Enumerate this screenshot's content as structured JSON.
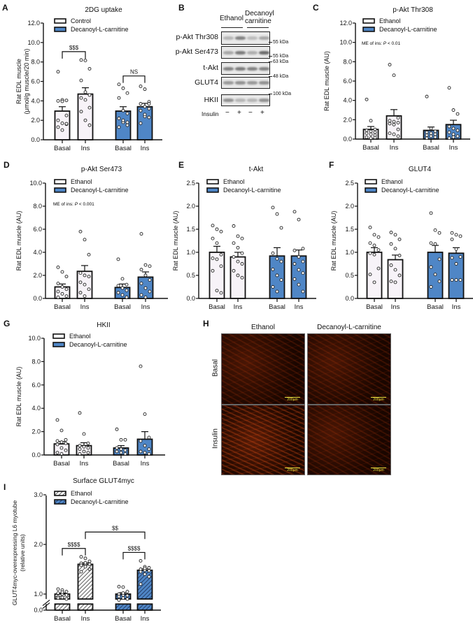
{
  "panel_letters": [
    "A",
    "B",
    "C",
    "D",
    "E",
    "F",
    "G",
    "H",
    "I"
  ],
  "colors": {
    "control": "#ffffff",
    "treatment": "#4f86c6",
    "ethanol_bar": "#f7f3f8",
    "axis": "#111111"
  },
  "blot": {
    "groups": [
      "Ethanol",
      "Decanoyl carnitine"
    ],
    "rows": [
      {
        "label": "p-Akt Thr308",
        "kda": "55 kDa"
      },
      {
        "label": "p-Akt Ser473",
        "kda": "55 kDa"
      },
      {
        "label": "t-Akt",
        "kda": "63 kDa"
      },
      {
        "label": "GLUT4",
        "kda": "48 kDa"
      },
      {
        "label": "HKII",
        "kda": "100 kDa"
      }
    ],
    "insulin_label": "Insulin",
    "insulin_states": [
      "−",
      "+",
      "−",
      "+"
    ]
  },
  "micrographs": {
    "columns": [
      "Ethanol",
      "Decanoyl-L-carnitine"
    ],
    "rows": [
      "Basal",
      "Insulin"
    ],
    "scale_bar": "200μm"
  },
  "chart_data": [
    {
      "id": "A",
      "type": "bar",
      "title": "2DG uptake",
      "ylabel": [
        "Rat EDL muscle",
        "(μmol/g muscle/20 min)"
      ],
      "legend": [
        "Control",
        "Decanoyl-L-carnitine"
      ],
      "ylim": [
        0,
        12
      ],
      "yticks": [
        "0.0",
        "2.0",
        "4.0",
        "6.0",
        "8.0",
        "10.0",
        "12.0"
      ],
      "categories": [
        "Basal",
        "Ins",
        "Basal",
        "Ins"
      ],
      "bars": [
        {
          "group": "Control",
          "mean": 2.95,
          "sem": 0.45,
          "points": [
            7.0,
            4.1,
            4.05,
            4.0,
            3.95,
            2.5,
            2.0,
            1.7,
            1.6,
            1.3,
            1.0,
            1.65
          ]
        },
        {
          "group": "Control",
          "mean": 4.7,
          "sem": 0.65,
          "points": [
            8.2,
            8.15,
            7.3,
            6.1,
            4.9,
            4.6,
            4.3,
            4.1,
            3.3,
            2.9,
            2.0,
            1.5
          ]
        },
        {
          "group": "Decanoyl-L-carnitine",
          "mean": 2.95,
          "sem": 0.45,
          "points": [
            5.7,
            5.3,
            4.8,
            4.3,
            3.0,
            2.7,
            2.2,
            1.8,
            1.5,
            1.3,
            2.0,
            1.8
          ]
        },
        {
          "group": "Decanoyl-L-carnitine",
          "mean": 3.4,
          "sem": 0.35,
          "points": [
            5.5,
            5.2,
            3.9,
            3.7,
            3.4,
            3.2,
            3.0,
            2.4,
            2.3,
            1.7,
            2.6,
            3.7
          ]
        }
      ],
      "significance": [
        {
          "from": 0,
          "to": 1,
          "label": "$$$"
        },
        {
          "from": 2,
          "to": 3,
          "label": "NS"
        }
      ]
    },
    {
      "id": "C",
      "type": "bar",
      "title": "p-Akt Thr308",
      "ylabel": [
        "Rat EDL muscle (AU)"
      ],
      "legend": [
        "Ethanol",
        "Decanoyl-L-carnitine"
      ],
      "ylim": [
        0,
        12
      ],
      "yticks": [
        "0.0",
        "2.0",
        "4.0",
        "6.0",
        "8.0",
        "10.0",
        "12.0"
      ],
      "annotation": {
        "prefix": "ME of ins: ",
        "italic": "P",
        "suffix": " < 0.01"
      },
      "categories": [
        "Basal",
        "Ins",
        "Basal",
        "Ins"
      ],
      "bars": [
        {
          "group": "Ethanol",
          "mean": 1.0,
          "sem": 0.3,
          "points": [
            4.1,
            1.9,
            1.0,
            0.9,
            0.8,
            0.7,
            0.6,
            0.5,
            0.4,
            0.2,
            0.1,
            0.15
          ]
        },
        {
          "group": "Ethanol",
          "mean": 2.4,
          "sem": 0.65,
          "points": [
            7.7,
            6.6,
            2.2,
            1.9,
            1.8,
            1.7,
            1.6,
            1.5,
            1.0,
            0.6,
            0.5,
            0.3
          ]
        },
        {
          "group": "Decanoyl-L-carnitine",
          "mean": 0.9,
          "sem": 0.35,
          "points": [
            4.4,
            1.1,
            0.8,
            0.7,
            0.6,
            0.5,
            0.4,
            0.3,
            0.2,
            0.1
          ]
        },
        {
          "group": "Decanoyl-L-carnitine",
          "mean": 1.5,
          "sem": 0.45,
          "points": [
            5.3,
            3.0,
            2.6,
            1.3,
            1.1,
            0.9,
            0.7,
            0.5,
            0.3,
            0.1,
            0.2
          ]
        }
      ]
    },
    {
      "id": "D",
      "type": "bar",
      "title": "p-Akt Ser473",
      "ylabel": [
        "Rat EDL muscle (AU)"
      ],
      "legend": [
        "Ethanol",
        "Decanoyl-L-carnitine"
      ],
      "ylim": [
        0,
        10
      ],
      "yticks": [
        "0.0",
        "2.0",
        "4.0",
        "6.0",
        "8.0",
        "10.0"
      ],
      "annotation": {
        "prefix": "ME of ins: ",
        "italic": "P",
        "suffix": " < 0.001"
      },
      "categories": [
        "Basal",
        "Ins",
        "Basal",
        "Ins"
      ],
      "bars": [
        {
          "group": "Ethanol",
          "mean": 1.0,
          "sem": 0.25,
          "points": [
            2.7,
            2.3,
            1.9,
            1.3,
            1.0,
            0.8,
            0.6,
            0.4,
            0.2,
            0.1
          ]
        },
        {
          "group": "Ethanol",
          "mean": 2.35,
          "sem": 0.5,
          "points": [
            5.8,
            5.1,
            3.8,
            2.2,
            2.0,
            1.9,
            1.4,
            1.2,
            0.8,
            0.5,
            0.2
          ]
        },
        {
          "group": "Decanoyl-L-carnitine",
          "mean": 0.95,
          "sem": 0.3,
          "points": [
            3.4,
            1.7,
            1.2,
            1.1,
            0.9,
            0.7,
            0.5,
            0.3,
            0.1
          ]
        },
        {
          "group": "Decanoyl-L-carnitine",
          "mean": 1.85,
          "sem": 0.45,
          "points": [
            5.6,
            2.9,
            2.8,
            2.5,
            2.0,
            1.6,
            1.3,
            0.9,
            0.6,
            0.3,
            0.1
          ]
        }
      ]
    },
    {
      "id": "E",
      "type": "bar",
      "title": "t-Akt",
      "ylabel": [
        "Rat EDL muscle (AU)"
      ],
      "legend": [
        "Ethanol",
        "Decanoyl-L-carnitine"
      ],
      "ylim": [
        0,
        2.5
      ],
      "yticks": [
        "0.0",
        "0.5",
        "1.0",
        "1.5",
        "2.0",
        "2.5"
      ],
      "categories": [
        "Basal",
        "Ins",
        "Basal",
        "Ins"
      ],
      "bars": [
        {
          "group": "Ethanol",
          "mean": 1.0,
          "sem": 0.13,
          "points": [
            1.58,
            1.5,
            1.45,
            1.3,
            1.2,
            0.95,
            0.87,
            0.85,
            0.7,
            0.6,
            0.17,
            0.12
          ]
        },
        {
          "group": "Ethanol",
          "mean": 0.9,
          "sem": 0.1,
          "points": [
            1.57,
            1.35,
            1.3,
            1.2,
            1.1,
            0.98,
            0.9,
            0.8,
            0.75,
            0.6,
            0.5,
            0.45
          ]
        },
        {
          "group": "Decanoyl-L-carnitine",
          "mean": 0.92,
          "sem": 0.18,
          "points": [
            1.97,
            1.83,
            1.53,
            0.98,
            0.86,
            0.8,
            0.63,
            0.5,
            0.4,
            0.25,
            0.15
          ]
        },
        {
          "group": "Decanoyl-L-carnitine",
          "mean": 0.92,
          "sem": 0.13,
          "points": [
            1.88,
            1.71,
            1.08,
            1.04,
            0.9,
            0.8,
            0.75,
            0.62,
            0.55,
            0.42,
            0.3,
            0.15
          ]
        }
      ]
    },
    {
      "id": "F",
      "type": "bar",
      "title": "GLUT4",
      "ylabel": [
        "Rat EDL muscle (AU)"
      ],
      "legend": [
        "Ethanol",
        "Decanoyl-L-carnitine"
      ],
      "ylim": [
        0,
        2.5
      ],
      "yticks": [
        "0.0",
        "0.5",
        "1.0",
        "1.5",
        "2.0",
        "2.5"
      ],
      "categories": [
        "Basal",
        "Ins",
        "Basal",
        "Ins"
      ],
      "bars": [
        {
          "group": "Ethanol",
          "mean": 1.0,
          "sem": 0.1,
          "points": [
            1.54,
            1.38,
            1.33,
            1.2,
            1.15,
            1.05,
            0.98,
            0.95,
            0.65,
            0.52,
            0.35
          ]
        },
        {
          "group": "Ethanol",
          "mean": 0.84,
          "sem": 0.1,
          "points": [
            1.43,
            1.38,
            1.28,
            1.18,
            1.08,
            0.93,
            0.72,
            0.62,
            0.5,
            0.37,
            0.35
          ]
        },
        {
          "group": "Decanoyl-L-carnitine",
          "mean": 1.0,
          "sem": 0.15,
          "points": [
            1.85,
            1.48,
            1.42,
            1.2,
            1.18,
            0.85,
            0.68,
            0.52,
            0.37,
            0.25
          ]
        },
        {
          "group": "Decanoyl-L-carnitine",
          "mean": 0.98,
          "sem": 0.12,
          "points": [
            1.42,
            1.38,
            1.35,
            1.28,
            1.07,
            0.9,
            0.88,
            0.75,
            0.4,
            0.4,
            0.4
          ]
        }
      ]
    },
    {
      "id": "G",
      "type": "bar",
      "title": "HKII",
      "ylabel": [
        "Rat EDL muscle (AU)"
      ],
      "legend": [
        "Ethanol",
        "Decanoyl-L-carnitine"
      ],
      "ylim": [
        0,
        10
      ],
      "yticks": [
        "0.0",
        "2.0",
        "4.0",
        "6.0",
        "8.0",
        "10.0"
      ],
      "categories": [
        "Basal",
        "Ins",
        "Basal",
        "Ins"
      ],
      "bars": [
        {
          "group": "Ethanol",
          "mean": 0.95,
          "sem": 0.2,
          "points": [
            3.0,
            2.1,
            1.3,
            1.2,
            1.1,
            1.0,
            0.9,
            0.6,
            0.4,
            0.2,
            0.1
          ]
        },
        {
          "group": "Ethanol",
          "mean": 0.8,
          "sem": 0.25,
          "points": [
            3.6,
            1.8,
            1.0,
            0.8,
            0.7,
            0.6,
            0.5,
            0.3,
            0.2,
            0.1
          ]
        },
        {
          "group": "Decanoyl-L-carnitine",
          "mean": 0.6,
          "sem": 0.2,
          "points": [
            2.2,
            1.3,
            1.3,
            0.6,
            0.5,
            0.4,
            0.3,
            0.2,
            0.1
          ]
        },
        {
          "group": "Decanoyl-L-carnitine",
          "mean": 1.35,
          "sem": 0.65,
          "points": [
            7.6,
            3.5,
            1.5,
            1.2,
            0.8,
            0.5,
            0.3,
            0.2,
            0.1
          ]
        }
      ]
    },
    {
      "id": "I",
      "type": "bar",
      "title": "Surface GLUT4myc",
      "ylabel": [
        "GLUT4myc-overexpressing L6 myotube",
        "(relative units)"
      ],
      "legend": [
        "Ethanol",
        "Decanoyl-L-carnitine"
      ],
      "ylim": [
        0,
        3
      ],
      "axis_break": [
        0.0,
        0.85
      ],
      "hatched": true,
      "yticks": [
        "0.0",
        "1.0",
        "2.0",
        "3.0"
      ],
      "categories": [
        "Basal",
        "Ins",
        "Basal",
        "Ins"
      ],
      "bars": [
        {
          "group": "Ethanol",
          "mean": 1.0,
          "sem": 0.02,
          "points": [
            1.1,
            1.08,
            1.05,
            1.02,
            1.0,
            0.98,
            0.95,
            0.93,
            0.9,
            0.92,
            1.04
          ]
        },
        {
          "group": "Ethanol",
          "mean": 1.6,
          "sem": 0.03,
          "points": [
            1.75,
            1.72,
            1.66,
            1.62,
            1.6,
            1.6,
            1.58,
            1.55,
            1.5,
            1.45,
            1.63
          ]
        },
        {
          "group": "Decanoyl-L-carnitine",
          "mean": 1.0,
          "sem": 0.03,
          "points": [
            1.15,
            1.14,
            1.05,
            1.0,
            0.98,
            0.97,
            0.95,
            0.92,
            0.9,
            0.88,
            1.02
          ]
        },
        {
          "group": "Decanoyl-L-carnitine",
          "mean": 1.48,
          "sem": 0.03,
          "points": [
            1.67,
            1.55,
            1.53,
            1.5,
            1.48,
            1.47,
            1.45,
            1.4,
            1.35,
            1.2,
            1.52
          ]
        }
      ],
      "significance": [
        {
          "from": 0,
          "to": 1,
          "label": "$$$$"
        },
        {
          "from": 2,
          "to": 3,
          "label": "$$$$"
        },
        {
          "from": 1,
          "to": 3,
          "label": "$$"
        }
      ]
    }
  ]
}
